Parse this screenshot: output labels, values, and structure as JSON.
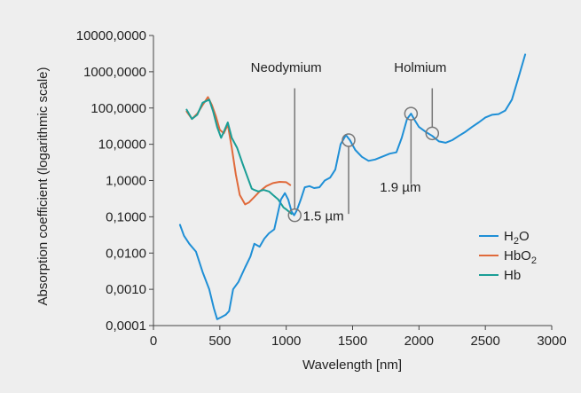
{
  "chart_data": {
    "type": "line",
    "xlabel": "Wavelength [nm]",
    "ylabel": "Absorption coefficient (logarithmic scale)",
    "xlim": [
      0,
      3000
    ],
    "ylim": [
      0.0001,
      10000
    ],
    "yscale": "log",
    "x_ticks": [
      {
        "value": 0,
        "label": "0"
      },
      {
        "value": 500,
        "label": "500"
      },
      {
        "value": 1000,
        "label": "1000"
      },
      {
        "value": 1500,
        "label": "1500"
      },
      {
        "value": 2000,
        "label": "2000"
      },
      {
        "value": 2500,
        "label": "2500"
      },
      {
        "value": 3000,
        "label": "3000"
      }
    ],
    "y_ticks": [
      {
        "value": 0.0001,
        "label": "0,0001"
      },
      {
        "value": 0.001,
        "label": "0,0010"
      },
      {
        "value": 0.01,
        "label": "0,0100"
      },
      {
        "value": 0.1,
        "label": "0,1000"
      },
      {
        "value": 1,
        "label": "1,0000"
      },
      {
        "value": 10,
        "label": "10,0000"
      },
      {
        "value": 100,
        "label": "100,0000"
      },
      {
        "value": 1000,
        "label": "1000,0000"
      },
      {
        "value": 10000,
        "label": "10000,0000"
      }
    ],
    "legend_position": "bottom-right",
    "series": [
      {
        "name": "H2O",
        "legend_main": "H",
        "legend_sub": "2",
        "legend_tail": "O",
        "color": "#1f8fd6",
        "x": [
          200,
          230,
          270,
          320,
          370,
          420,
          455,
          480,
          510,
          545,
          570,
          600,
          640,
          690,
          730,
          760,
          800,
          835,
          870,
          910,
          960,
          990,
          1015,
          1040,
          1060,
          1080,
          1110,
          1140,
          1175,
          1210,
          1250,
          1290,
          1330,
          1370,
          1410,
          1450,
          1480,
          1520,
          1570,
          1620,
          1670,
          1720,
          1780,
          1830,
          1870,
          1910,
          1940,
          1970,
          2000,
          2050,
          2100,
          2150,
          2200,
          2250,
          2300,
          2350,
          2400,
          2450,
          2500,
          2550,
          2600,
          2650,
          2700,
          2750,
          2800
        ],
        "y": [
          0.06,
          0.03,
          0.018,
          0.011,
          0.003,
          0.001,
          0.0003,
          0.00015,
          0.00017,
          0.0002,
          0.00025,
          0.001,
          0.0016,
          0.004,
          0.008,
          0.018,
          0.015,
          0.025,
          0.035,
          0.045,
          0.3,
          0.45,
          0.3,
          0.14,
          0.11,
          0.15,
          0.3,
          0.65,
          0.7,
          0.62,
          0.65,
          1.0,
          1.2,
          2.0,
          10.0,
          18.0,
          13.0,
          7.0,
          4.5,
          3.5,
          3.8,
          4.5,
          5.5,
          6.0,
          15.0,
          50.0,
          70.0,
          45.0,
          30.0,
          22.0,
          17.0,
          12.0,
          11.0,
          13.0,
          17.0,
          22.0,
          30.0,
          40.0,
          55.0,
          65.0,
          68.0,
          85.0,
          170.0,
          700.0,
          3000.0
        ]
      },
      {
        "name": "HbO2",
        "legend_main": "HbO",
        "legend_sub": "2",
        "legend_tail": "",
        "color": "#e06a3b",
        "x": [
          250,
          290,
          330,
          370,
          410,
          440,
          470,
          500,
          530,
          560,
          590,
          620,
          650,
          690,
          720,
          760,
          800,
          850,
          900,
          950,
          1000,
          1030
        ],
        "y": [
          80.0,
          50.0,
          70.0,
          120.0,
          200.0,
          120.0,
          60.0,
          25.0,
          20.0,
          35.0,
          8.0,
          1.5,
          0.4,
          0.22,
          0.25,
          0.35,
          0.5,
          0.7,
          0.85,
          0.92,
          0.9,
          0.75
        ]
      },
      {
        "name": "Hb",
        "legend_main": "Hb",
        "legend_sub": "",
        "legend_tail": "",
        "color": "#1a9e96",
        "x": [
          250,
          290,
          330,
          370,
          420,
          450,
          480,
          510,
          530,
          560,
          590,
          630,
          670,
          700,
          740,
          760,
          790,
          830,
          870,
          900,
          940,
          980,
          1000,
          1040
        ],
        "y": [
          90.0,
          50.0,
          65.0,
          140.0,
          170.0,
          80.0,
          30.0,
          15.0,
          22.0,
          40.0,
          15.0,
          8.0,
          3.0,
          1.5,
          0.6,
          0.55,
          0.5,
          0.55,
          0.5,
          0.4,
          0.3,
          0.18,
          0.16,
          0.12
        ]
      }
    ],
    "annotations": [
      {
        "text": "Neodymium",
        "x": 1064,
        "y": 0.11,
        "label_x": 1000,
        "label_y": 1000,
        "line_top": 350
      },
      {
        "text": "1.5 µm",
        "x": 1470,
        "y": 13,
        "label_x": 1280,
        "label_y": 0.08,
        "line_top": 0.12
      },
      {
        "text": "1.9 µm",
        "x": 1940,
        "y": 70,
        "label_x": 1860,
        "label_y": 0.5,
        "line_top": 0.8
      },
      {
        "text": "Holmium",
        "x": 2100,
        "y": 20,
        "label_x": 2010,
        "label_y": 1000,
        "line_top": 350
      }
    ]
  }
}
